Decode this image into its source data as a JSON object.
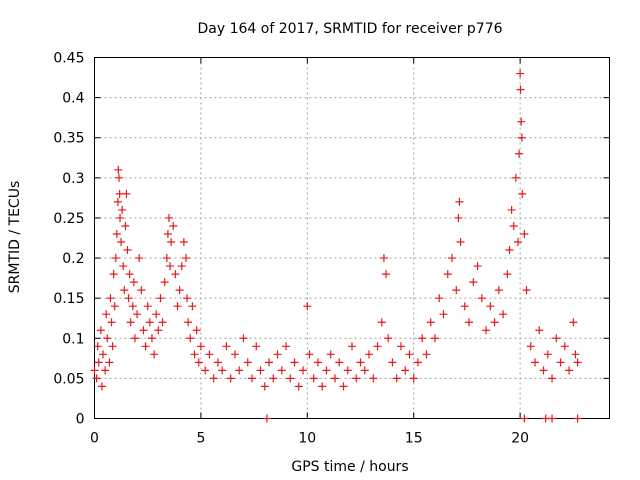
{
  "chart_data": {
    "type": "scatter",
    "title": "Day 164 of 2017, SRMTID for receiver p776",
    "xlabel": "GPS time / hours",
    "ylabel": "SRMTID / TECUs",
    "xlim": [
      0,
      24.2
    ],
    "ylim": [
      0,
      0.45
    ],
    "xticks": [
      0,
      5,
      10,
      15,
      20
    ],
    "xtick_labels": [
      "0",
      "5",
      "10",
      "15",
      "20"
    ],
    "yticks": [
      0,
      0.05,
      0.1,
      0.15,
      0.2,
      0.25,
      0.3,
      0.35,
      0.4,
      0.45
    ],
    "ytick_labels": [
      "0",
      "0.05",
      "0.1",
      "0.15",
      "0.2",
      "0.25",
      "0.3",
      "0.35",
      "0.4",
      "0.45"
    ],
    "grid": true,
    "marker": "+",
    "color": "#e41a1c",
    "series": [
      {
        "name": "SRMTID",
        "points": [
          [
            0.0,
            0.06
          ],
          [
            0.1,
            0.05
          ],
          [
            0.15,
            0.09
          ],
          [
            0.2,
            0.07
          ],
          [
            0.3,
            0.11
          ],
          [
            0.35,
            0.04
          ],
          [
            0.4,
            0.08
          ],
          [
            0.5,
            0.06
          ],
          [
            0.55,
            0.13
          ],
          [
            0.6,
            0.1
          ],
          [
            0.7,
            0.07
          ],
          [
            0.75,
            0.15
          ],
          [
            0.8,
            0.12
          ],
          [
            0.85,
            0.09
          ],
          [
            0.9,
            0.18
          ],
          [
            0.95,
            0.14
          ],
          [
            1.0,
            0.2
          ],
          [
            1.05,
            0.23
          ],
          [
            1.1,
            0.27
          ],
          [
            1.12,
            0.31
          ],
          [
            1.15,
            0.3
          ],
          [
            1.18,
            0.28
          ],
          [
            1.2,
            0.25
          ],
          [
            1.25,
            0.22
          ],
          [
            1.3,
            0.26
          ],
          [
            1.35,
            0.19
          ],
          [
            1.4,
            0.16
          ],
          [
            1.45,
            0.24
          ],
          [
            1.5,
            0.28
          ],
          [
            1.55,
            0.21
          ],
          [
            1.6,
            0.15
          ],
          [
            1.65,
            0.18
          ],
          [
            1.7,
            0.12
          ],
          [
            1.8,
            0.14
          ],
          [
            1.85,
            0.17
          ],
          [
            1.9,
            0.1
          ],
          [
            2.0,
            0.13
          ],
          [
            2.1,
            0.2
          ],
          [
            2.2,
            0.16
          ],
          [
            2.3,
            0.11
          ],
          [
            2.4,
            0.09
          ],
          [
            2.5,
            0.14
          ],
          [
            2.6,
            0.12
          ],
          [
            2.7,
            0.1
          ],
          [
            2.8,
            0.08
          ],
          [
            2.9,
            0.13
          ],
          [
            3.0,
            0.11
          ],
          [
            3.1,
            0.15
          ],
          [
            3.2,
            0.12
          ],
          [
            3.3,
            0.17
          ],
          [
            3.4,
            0.2
          ],
          [
            3.45,
            0.23
          ],
          [
            3.5,
            0.25
          ],
          [
            3.55,
            0.19
          ],
          [
            3.6,
            0.22
          ],
          [
            3.7,
            0.24
          ],
          [
            3.8,
            0.18
          ],
          [
            3.9,
            0.14
          ],
          [
            4.0,
            0.16
          ],
          [
            4.1,
            0.19
          ],
          [
            4.2,
            0.22
          ],
          [
            4.3,
            0.2
          ],
          [
            4.35,
            0.15
          ],
          [
            4.4,
            0.12
          ],
          [
            4.5,
            0.1
          ],
          [
            4.6,
            0.14
          ],
          [
            4.7,
            0.08
          ],
          [
            4.8,
            0.11
          ],
          [
            4.9,
            0.07
          ],
          [
            5.0,
            0.09
          ],
          [
            5.2,
            0.06
          ],
          [
            5.4,
            0.08
          ],
          [
            5.6,
            0.05
          ],
          [
            5.8,
            0.07
          ],
          [
            6.0,
            0.06
          ],
          [
            6.2,
            0.09
          ],
          [
            6.4,
            0.05
          ],
          [
            6.6,
            0.08
          ],
          [
            6.8,
            0.06
          ],
          [
            7.0,
            0.1
          ],
          [
            7.2,
            0.07
          ],
          [
            7.4,
            0.05
          ],
          [
            7.6,
            0.09
          ],
          [
            7.8,
            0.06
          ],
          [
            8.0,
            0.04
          ],
          [
            8.2,
            0.07
          ],
          [
            8.4,
            0.05
          ],
          [
            8.6,
            0.08
          ],
          [
            8.8,
            0.06
          ],
          [
            9.0,
            0.09
          ],
          [
            9.2,
            0.05
          ],
          [
            9.4,
            0.07
          ],
          [
            9.6,
            0.04
          ],
          [
            9.8,
            0.06
          ],
          [
            10.0,
            0.14
          ],
          [
            10.1,
            0.08
          ],
          [
            10.3,
            0.05
          ],
          [
            10.5,
            0.07
          ],
          [
            10.7,
            0.04
          ],
          [
            10.9,
            0.06
          ],
          [
            11.1,
            0.08
          ],
          [
            11.3,
            0.05
          ],
          [
            11.5,
            0.07
          ],
          [
            11.7,
            0.04
          ],
          [
            11.9,
            0.06
          ],
          [
            12.1,
            0.09
          ],
          [
            12.3,
            0.05
          ],
          [
            12.5,
            0.07
          ],
          [
            12.7,
            0.06
          ],
          [
            12.9,
            0.08
          ],
          [
            13.1,
            0.05
          ],
          [
            13.3,
            0.09
          ],
          [
            13.5,
            0.12
          ],
          [
            13.6,
            0.2
          ],
          [
            13.7,
            0.18
          ],
          [
            13.8,
            0.1
          ],
          [
            14.0,
            0.07
          ],
          [
            14.2,
            0.05
          ],
          [
            14.4,
            0.09
          ],
          [
            14.6,
            0.06
          ],
          [
            14.8,
            0.08
          ],
          [
            15.0,
            0.05
          ],
          [
            15.2,
            0.07
          ],
          [
            15.4,
            0.1
          ],
          [
            15.6,
            0.08
          ],
          [
            15.8,
            0.12
          ],
          [
            16.0,
            0.1
          ],
          [
            16.2,
            0.15
          ],
          [
            16.4,
            0.13
          ],
          [
            16.6,
            0.18
          ],
          [
            16.8,
            0.2
          ],
          [
            17.0,
            0.16
          ],
          [
            17.1,
            0.25
          ],
          [
            17.15,
            0.27
          ],
          [
            17.2,
            0.22
          ],
          [
            17.4,
            0.14
          ],
          [
            17.6,
            0.12
          ],
          [
            17.8,
            0.17
          ],
          [
            18.0,
            0.19
          ],
          [
            18.2,
            0.15
          ],
          [
            18.4,
            0.11
          ],
          [
            18.6,
            0.14
          ],
          [
            18.8,
            0.12
          ],
          [
            19.0,
            0.16
          ],
          [
            19.2,
            0.13
          ],
          [
            19.4,
            0.18
          ],
          [
            19.5,
            0.21
          ],
          [
            19.6,
            0.26
          ],
          [
            19.7,
            0.24
          ],
          [
            19.8,
            0.3
          ],
          [
            19.9,
            0.22
          ],
          [
            19.95,
            0.33
          ],
          [
            20.0,
            0.43
          ],
          [
            20.02,
            0.41
          ],
          [
            20.05,
            0.37
          ],
          [
            20.08,
            0.35
          ],
          [
            20.1,
            0.28
          ],
          [
            20.2,
            0.23
          ],
          [
            20.3,
            0.16
          ],
          [
            20.5,
            0.09
          ],
          [
            20.7,
            0.07
          ],
          [
            20.9,
            0.11
          ],
          [
            21.1,
            0.06
          ],
          [
            21.3,
            0.08
          ],
          [
            21.5,
            0.05
          ],
          [
            21.7,
            0.1
          ],
          [
            21.9,
            0.07
          ],
          [
            22.1,
            0.09
          ],
          [
            22.3,
            0.06
          ],
          [
            22.5,
            0.12
          ],
          [
            22.6,
            0.08
          ],
          [
            22.7,
            0.07
          ],
          [
            8.1,
            0.0
          ],
          [
            20.2,
            0.0
          ],
          [
            21.2,
            0.0
          ],
          [
            21.5,
            0.0
          ],
          [
            22.7,
            0.0
          ]
        ]
      }
    ]
  }
}
